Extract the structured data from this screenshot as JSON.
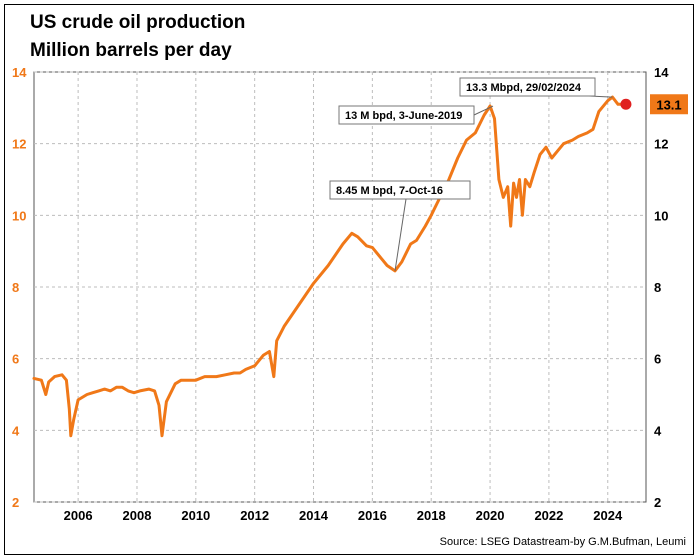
{
  "title": "US crude oil production",
  "subtitle": "Million barrels per day",
  "source": "Source: LSEG Datastream-by G.M.Bufman, Leumi",
  "colors": {
    "line": "#F07818",
    "left_axis_text": "#F07818",
    "last_badge": "#F07818",
    "last_dot": "#E02020",
    "grid": "#BDBDBD"
  },
  "chart_data": {
    "type": "line",
    "title": "US crude oil production",
    "subtitle": "Million barrels per day",
    "xlabel": "",
    "ylabel": "",
    "x_ticks": [
      "2006",
      "2008",
      "2010",
      "2012",
      "2014",
      "2016",
      "2018",
      "2020",
      "2022",
      "2024"
    ],
    "y_ticks": [
      "2",
      "4",
      "6",
      "8",
      "10",
      "12",
      "14"
    ],
    "ylim": [
      2,
      14
    ],
    "xlim": [
      2004.5,
      2025.3
    ],
    "grid": true,
    "last_value_label": "13.1",
    "annotations": [
      {
        "text": "8.45 M bpd, 7-Oct-16",
        "x": 2016.77,
        "y": 8.45
      },
      {
        "text": "13 M bpd, 3-June-2019",
        "x": 2020.1,
        "y": 13.05
      },
      {
        "text": "13.3 Mbpd, 29/02/2024",
        "x": 2024.16,
        "y": 13.3
      }
    ],
    "series": [
      {
        "x": [
          2004.5,
          2004.75,
          2004.9,
          2005.0,
          2005.2,
          2005.45,
          2005.6,
          2005.7,
          2005.75,
          2005.85,
          2006.0,
          2006.3,
          2006.5,
          2006.7,
          2006.9,
          2007.1,
          2007.3,
          2007.5,
          2007.7,
          2007.9,
          2008.1,
          2008.4,
          2008.6,
          2008.75,
          2008.85,
          2009.0,
          2009.3,
          2009.5,
          2009.7,
          2010.0,
          2010.3,
          2010.5,
          2010.7,
          2011.0,
          2011.3,
          2011.5,
          2011.7,
          2012.0,
          2012.3,
          2012.5,
          2012.65,
          2012.75,
          2013.0,
          2013.5,
          2014.0,
          2014.5,
          2015.0,
          2015.3,
          2015.5,
          2015.8,
          2016.0,
          2016.3,
          2016.5,
          2016.77,
          2017.0,
          2017.3,
          2017.5,
          2017.8,
          2018.0,
          2018.3,
          2018.6,
          2018.9,
          2019.2,
          2019.5,
          2019.8,
          2020.0,
          2020.15,
          2020.3,
          2020.45,
          2020.6,
          2020.7,
          2020.8,
          2020.9,
          2021.0,
          2021.1,
          2021.2,
          2021.35,
          2021.5,
          2021.7,
          2021.9,
          2022.1,
          2022.3,
          2022.5,
          2022.8,
          2023.0,
          2023.3,
          2023.5,
          2023.7,
          2023.9,
          2024.0,
          2024.16,
          2024.35,
          2024.55
        ],
        "y": [
          5.45,
          5.4,
          5.0,
          5.35,
          5.5,
          5.55,
          5.4,
          4.6,
          3.85,
          4.3,
          4.85,
          5.0,
          5.05,
          5.1,
          5.15,
          5.1,
          5.2,
          5.2,
          5.1,
          5.05,
          5.1,
          5.15,
          5.1,
          4.7,
          3.85,
          4.8,
          5.3,
          5.4,
          5.4,
          5.4,
          5.5,
          5.5,
          5.5,
          5.55,
          5.6,
          5.6,
          5.7,
          5.8,
          6.1,
          6.2,
          5.5,
          6.5,
          6.9,
          7.5,
          8.1,
          8.6,
          9.2,
          9.5,
          9.4,
          9.15,
          9.1,
          8.8,
          8.6,
          8.45,
          8.7,
          9.2,
          9.3,
          9.7,
          10.0,
          10.5,
          11.0,
          11.6,
          12.1,
          12.3,
          12.8,
          13.05,
          12.7,
          11.0,
          10.5,
          10.8,
          9.7,
          10.9,
          10.5,
          11.0,
          10.0,
          11.0,
          10.8,
          11.2,
          11.7,
          11.9,
          11.6,
          11.8,
          12.0,
          12.1,
          12.2,
          12.3,
          12.4,
          12.9,
          13.1,
          13.2,
          13.3,
          13.1,
          13.1
        ]
      }
    ]
  }
}
